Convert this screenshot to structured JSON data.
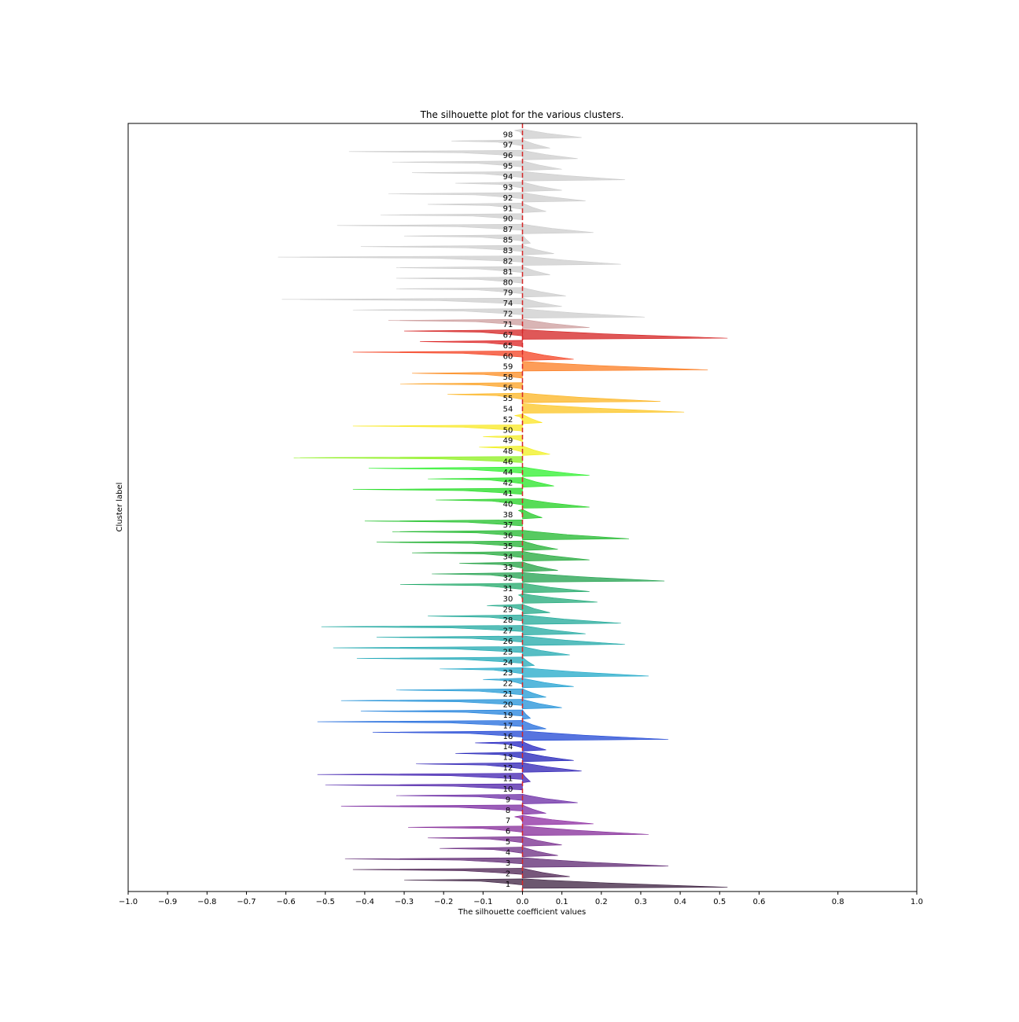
{
  "chart_data": {
    "type": "silhouette",
    "title": "The silhouette plot for the various clusters.",
    "xlabel": "The silhouette coefficient values",
    "ylabel": "Cluster label",
    "xlim": [
      -1.0,
      1.0
    ],
    "xticks": [
      -1.0,
      -0.9,
      -0.8,
      -0.7,
      -0.6,
      -0.5,
      -0.4,
      -0.3,
      -0.2,
      -0.1,
      0.0,
      0.1,
      0.2,
      0.3,
      0.4,
      0.5,
      0.6,
      0.8,
      1.0
    ],
    "xtick_labels": [
      "−1.0",
      "−0.9",
      "−0.8",
      "−0.7",
      "−0.6",
      "−0.5",
      "−0.4",
      "−0.3",
      "−0.2",
      "−0.1",
      "0.0",
      "0.1",
      "0.2",
      "0.3",
      "0.4",
      "0.5",
      "0.6",
      "0.8",
      "1.0"
    ],
    "average_silhouette_line": 0.0,
    "average_line_color": "#d62728",
    "grid": false,
    "clusters": [
      {
        "label": "1",
        "max": 0.52,
        "min": -0.3,
        "color": "#3b1f3f"
      },
      {
        "label": "2",
        "max": 0.12,
        "min": -0.43,
        "color": "#4a1f4f"
      },
      {
        "label": "3",
        "max": 0.37,
        "min": -0.45,
        "color": "#5c2570"
      },
      {
        "label": "4",
        "max": 0.09,
        "min": -0.21,
        "color": "#6a2a80"
      },
      {
        "label": "5",
        "max": 0.1,
        "min": -0.24,
        "color": "#762a8c"
      },
      {
        "label": "6",
        "max": 0.32,
        "min": -0.29,
        "color": "#842a98"
      },
      {
        "label": "7",
        "max": 0.18,
        "min": -0.02,
        "color": "#8c2aa0"
      },
      {
        "label": "8",
        "max": 0.06,
        "min": -0.46,
        "color": "#7a28a0"
      },
      {
        "label": "9",
        "max": 0.14,
        "min": -0.32,
        "color": "#6a2aa4"
      },
      {
        "label": "10",
        "max": 0.0,
        "min": -0.5,
        "color": "#4c1fa8"
      },
      {
        "label": "11",
        "max": 0.02,
        "min": -0.52,
        "color": "#3f1fb0"
      },
      {
        "label": "12",
        "max": 0.15,
        "min": -0.27,
        "color": "#2c1fb4"
      },
      {
        "label": "13",
        "max": 0.13,
        "min": -0.17,
        "color": "#1f1fb8"
      },
      {
        "label": "14",
        "max": 0.06,
        "min": -0.12,
        "color": "#2020c0"
      },
      {
        "label": "16",
        "max": 0.37,
        "min": -0.38,
        "color": "#1f46d4"
      },
      {
        "label": "17",
        "max": 0.06,
        "min": -0.52,
        "color": "#1f6adc"
      },
      {
        "label": "19",
        "max": 0.02,
        "min": -0.41,
        "color": "#1f80dc"
      },
      {
        "label": "20",
        "max": 0.1,
        "min": -0.46,
        "color": "#1f90d8"
      },
      {
        "label": "21",
        "max": 0.06,
        "min": -0.32,
        "color": "#1f98d4"
      },
      {
        "label": "22",
        "max": 0.13,
        "min": -0.1,
        "color": "#1fa0d0"
      },
      {
        "label": "23",
        "max": 0.32,
        "min": -0.21,
        "color": "#1fa8c8"
      },
      {
        "label": "24",
        "max": 0.03,
        "min": -0.42,
        "color": "#1fa8b8"
      },
      {
        "label": "25",
        "max": 0.12,
        "min": -0.48,
        "color": "#1fa8b0"
      },
      {
        "label": "26",
        "max": 0.26,
        "min": -0.37,
        "color": "#1fa8a8"
      },
      {
        "label": "27",
        "max": 0.16,
        "min": -0.51,
        "color": "#1fa8a0"
      },
      {
        "label": "28",
        "max": 0.25,
        "min": -0.24,
        "color": "#1fa898"
      },
      {
        "label": "29",
        "max": 0.07,
        "min": -0.09,
        "color": "#1fa888"
      },
      {
        "label": "30",
        "max": 0.19,
        "min": -0.01,
        "color": "#1fa878"
      },
      {
        "label": "31",
        "max": 0.17,
        "min": -0.31,
        "color": "#1fa868"
      },
      {
        "label": "32",
        "max": 0.36,
        "min": -0.23,
        "color": "#1fa04c"
      },
      {
        "label": "33",
        "max": 0.09,
        "min": -0.16,
        "color": "#1fa040"
      },
      {
        "label": "34",
        "max": 0.17,
        "min": -0.28,
        "color": "#1fa838"
      },
      {
        "label": "35",
        "max": 0.09,
        "min": -0.37,
        "color": "#1fb030"
      },
      {
        "label": "36",
        "max": 0.27,
        "min": -0.33,
        "color": "#1fb82c"
      },
      {
        "label": "37",
        "max": 0.0,
        "min": -0.4,
        "color": "#1fc028"
      },
      {
        "label": "38",
        "max": 0.05,
        "min": -0.01,
        "color": "#20c824"
      },
      {
        "label": "40",
        "max": 0.17,
        "min": -0.22,
        "color": "#20d020"
      },
      {
        "label": "41",
        "max": 0.0,
        "min": -0.43,
        "color": "#22dc22"
      },
      {
        "label": "42",
        "max": 0.08,
        "min": -0.24,
        "color": "#26e426"
      },
      {
        "label": "44",
        "max": 0.17,
        "min": -0.39,
        "color": "#2cf02c"
      },
      {
        "label": "46",
        "max": 0.0,
        "min": -0.58,
        "color": "#8cf01c"
      },
      {
        "label": "48",
        "max": 0.07,
        "min": -0.11,
        "color": "#f0f01c"
      },
      {
        "label": "49",
        "max": 0.0,
        "min": -0.1,
        "color": "#f4ec20"
      },
      {
        "label": "50",
        "max": 0.0,
        "min": -0.43,
        "color": "#f8e820"
      },
      {
        "label": "52",
        "max": 0.05,
        "min": -0.02,
        "color": "#fce420"
      },
      {
        "label": "54",
        "max": 0.41,
        "min": 0.0,
        "color": "#fcc420"
      },
      {
        "label": "55",
        "max": 0.35,
        "min": -0.19,
        "color": "#fcb420"
      },
      {
        "label": "56",
        "max": 0.0,
        "min": -0.31,
        "color": "#fca020"
      },
      {
        "label": "58",
        "max": 0.0,
        "min": -0.28,
        "color": "#fc8c20"
      },
      {
        "label": "59",
        "max": 0.47,
        "min": 0.0,
        "color": "#fc7c20"
      },
      {
        "label": "60",
        "max": 0.13,
        "min": -0.43,
        "color": "#f44020"
      },
      {
        "label": "65",
        "max": 0.0,
        "min": -0.26,
        "color": "#dc2020"
      },
      {
        "label": "67",
        "max": 0.52,
        "min": -0.3,
        "color": "#d42020"
      },
      {
        "label": "71",
        "max": 0.17,
        "min": -0.34,
        "color": "#cc9c9c"
      },
      {
        "label": "72",
        "max": 0.31,
        "min": -0.43,
        "color": "#cccccc"
      },
      {
        "label": "74",
        "max": 0.1,
        "min": -0.61,
        "color": "#cccccc"
      },
      {
        "label": "79",
        "max": 0.11,
        "min": -0.32,
        "color": "#cccccc"
      },
      {
        "label": "80",
        "max": 0.0,
        "min": -0.32,
        "color": "#cccccc"
      },
      {
        "label": "81",
        "max": 0.07,
        "min": -0.32,
        "color": "#cccccc"
      },
      {
        "label": "82",
        "max": 0.25,
        "min": -0.62,
        "color": "#cccccc"
      },
      {
        "label": "83",
        "max": 0.08,
        "min": -0.41,
        "color": "#cccccc"
      },
      {
        "label": "85",
        "max": 0.02,
        "min": -0.3,
        "color": "#cccccc"
      },
      {
        "label": "87",
        "max": 0.18,
        "min": -0.47,
        "color": "#cccccc"
      },
      {
        "label": "90",
        "max": 0.0,
        "min": -0.36,
        "color": "#cccccc"
      },
      {
        "label": "91",
        "max": 0.06,
        "min": -0.24,
        "color": "#cccccc"
      },
      {
        "label": "92",
        "max": 0.16,
        "min": -0.34,
        "color": "#cccccc"
      },
      {
        "label": "93",
        "max": 0.1,
        "min": -0.17,
        "color": "#cccccc"
      },
      {
        "label": "94",
        "max": 0.26,
        "min": -0.28,
        "color": "#cccccc"
      },
      {
        "label": "95",
        "max": 0.1,
        "min": -0.33,
        "color": "#cccccc"
      },
      {
        "label": "96",
        "max": 0.14,
        "min": -0.44,
        "color": "#cccccc"
      },
      {
        "label": "97",
        "max": 0.07,
        "min": -0.18,
        "color": "#cccccc"
      },
      {
        "label": "98",
        "max": 0.15,
        "min": -0.02,
        "color": "#cccccc"
      }
    ]
  }
}
